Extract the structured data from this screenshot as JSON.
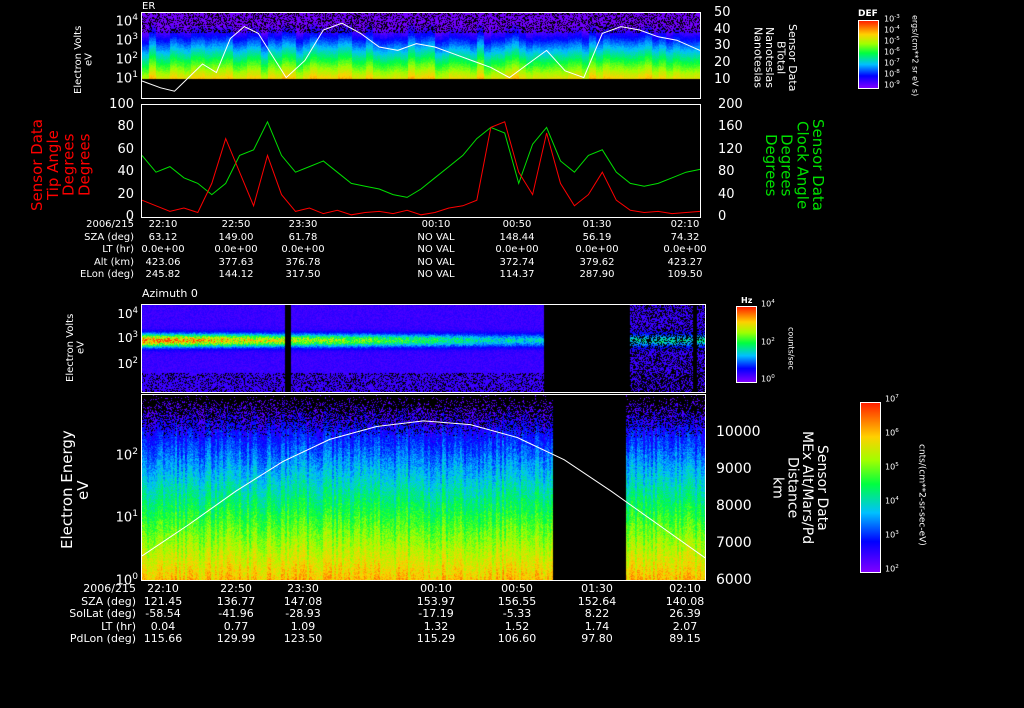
{
  "panel1": {
    "title": "ER",
    "ylabel": [
      "Electron Volts",
      "eV"
    ],
    "yticks": [
      "10^4",
      "10^3",
      "10^2",
      "10^1"
    ],
    "right_ticks": [
      "50",
      "40",
      "30",
      "20",
      "10"
    ],
    "right_label": [
      "Sensor Data",
      "BTotal",
      "Nanoteslas",
      "Nanoteslas"
    ],
    "colorbar": {
      "title": "DEF",
      "ticks": [
        "10^-3",
        "10^-4",
        "10^-5",
        "10^-6",
        "10^-7",
        "10^-8",
        "10^-9"
      ],
      "unit": "ergs/(cm**2 sr eV s)"
    }
  },
  "panel2": {
    "left_label": [
      "Sensor Data",
      "Tip Angle",
      "Degrees",
      "Degrees"
    ],
    "left_ticks": [
      "100",
      "80",
      "60",
      "40",
      "20",
      "0"
    ],
    "right_label": [
      "Sensor Data",
      "Clock Angle",
      "Degrees",
      "Degrees"
    ],
    "right_ticks": [
      "200",
      "160",
      "120",
      "80",
      "40",
      "0"
    ],
    "colors": {
      "tip": "#ff0000",
      "clock": "#00e000"
    }
  },
  "table1": {
    "date": "2006/215",
    "times": [
      "22:10",
      "22:50",
      "23:30",
      "00:10",
      "00:50",
      "01:30",
      "02:10"
    ],
    "rows": [
      {
        "label": "SZA (deg)",
        "values": [
          "63.12",
          "149.00",
          "61.78",
          "NO VAL",
          "148.44",
          "56.19",
          "74.32"
        ]
      },
      {
        "label": "LT (hr)",
        "values": [
          "0.0e+00",
          "0.0e+00",
          "0.0e+00",
          "NO VAL",
          "0.0e+00",
          "0.0e+00",
          "0.0e+00"
        ]
      },
      {
        "label": "Alt (km)",
        "values": [
          "423.06",
          "377.63",
          "376.78",
          "NO VAL",
          "372.74",
          "379.62",
          "423.27"
        ]
      },
      {
        "label": "ELon (deg)",
        "values": [
          "245.82",
          "144.12",
          "317.50",
          "NO VAL",
          "114.37",
          "287.90",
          "109.50"
        ]
      }
    ]
  },
  "panel3": {
    "title": "Azimuth 0",
    "ylabel": [
      "Electron Volts",
      "eV"
    ],
    "yticks": [
      "10^4",
      "10^3",
      "10^2"
    ],
    "colorbar": {
      "title": "Hz",
      "ticks": [
        "10^4",
        "10^2",
        "10^0"
      ],
      "unit": "counts/sec"
    }
  },
  "panel4": {
    "ylabel": [
      "Electron Energy",
      "eV"
    ],
    "yticks": [
      "10^2",
      "10^1",
      "10^0"
    ],
    "right_ticks": [
      "10000",
      "9000",
      "8000",
      "7000",
      "6000"
    ],
    "right_label": [
      "Sensor Data",
      "MEx Alt/Mars/Pd",
      "Distance",
      "km"
    ],
    "colorbar": {
      "ticks": [
        "10^7",
        "10^6",
        "10^5",
        "10^4",
        "10^3",
        "10^2"
      ],
      "unit": "cnts/(cm**2-sr-sec-eV)"
    }
  },
  "table2": {
    "date": "2006/215",
    "times": [
      "22:10",
      "22:50",
      "23:30",
      "00:10",
      "00:50",
      "01:30",
      "02:10"
    ],
    "rows": [
      {
        "label": "SZA (deg)",
        "values": [
          "121.45",
          "136.77",
          "147.08",
          "153.97",
          "156.55",
          "152.64",
          "140.08"
        ]
      },
      {
        "label": "SolLat (deg)",
        "values": [
          "-58.54",
          "-41.96",
          "-28.93",
          "-17.19",
          "-5.33",
          "8.22",
          "26.39"
        ]
      },
      {
        "label": "LT (hr)",
        "values": [
          "0.04",
          "0.77",
          "1.09",
          "1.32",
          "1.52",
          "1.74",
          "2.07"
        ]
      },
      {
        "label": "PdLon (deg)",
        "values": [
          "115.66",
          "129.99",
          "123.50",
          "115.29",
          "106.60",
          "97.80",
          "89.15"
        ]
      }
    ]
  },
  "chart_data": [
    {
      "type": "heatmap",
      "title": "ER",
      "ylabel": "Electron Volts (eV)",
      "ylim_log10": [
        0,
        4.4
      ],
      "x_minutes_from_2210": [
        0,
        240
      ],
      "overlay": {
        "name": "BTotal (nT)",
        "ylim": [
          0,
          50
        ],
        "x": [
          0,
          8,
          14,
          20,
          26,
          32,
          38,
          44,
          50,
          56,
          62,
          70,
          78,
          86,
          94,
          102,
          110,
          118,
          126,
          134,
          142,
          150,
          158,
          166,
          174,
          182,
          190,
          198,
          206,
          214,
          222,
          230,
          240
        ],
        "y": [
          10,
          6,
          4,
          12,
          20,
          15,
          35,
          42,
          38,
          25,
          12,
          22,
          40,
          44,
          38,
          30,
          28,
          32,
          30,
          26,
          22,
          18,
          12,
          20,
          28,
          16,
          12,
          38,
          42,
          40,
          36,
          34,
          28
        ]
      }
    },
    {
      "type": "line",
      "xlim_minutes_from_2210": [
        0,
        240
      ],
      "series": [
        {
          "name": "Tip Angle (deg)",
          "ylim": [
            0,
            100
          ],
          "x": [
            0,
            6,
            12,
            18,
            24,
            30,
            36,
            42,
            48,
            54,
            60,
            66,
            72,
            78,
            84,
            90,
            96,
            102,
            108,
            114,
            120,
            126,
            132,
            138,
            144,
            150,
            156,
            162,
            168,
            174,
            180,
            186,
            192,
            198,
            204,
            210,
            216,
            222,
            228,
            234,
            240
          ],
          "y": [
            15,
            10,
            5,
            8,
            4,
            30,
            70,
            40,
            10,
            55,
            20,
            5,
            8,
            3,
            6,
            2,
            4,
            5,
            3,
            6,
            2,
            4,
            8,
            10,
            15,
            80,
            85,
            40,
            20,
            75,
            30,
            10,
            20,
            40,
            15,
            6,
            4,
            5,
            3,
            4,
            5
          ]
        },
        {
          "name": "Clock Angle (deg)",
          "ylim": [
            0,
            200
          ],
          "x": [
            0,
            6,
            12,
            18,
            24,
            30,
            36,
            42,
            48,
            54,
            60,
            66,
            72,
            78,
            84,
            90,
            96,
            102,
            108,
            114,
            120,
            126,
            132,
            138,
            144,
            150,
            156,
            162,
            168,
            174,
            180,
            186,
            192,
            198,
            204,
            210,
            216,
            222,
            228,
            234,
            240
          ],
          "y": [
            110,
            80,
            90,
            70,
            60,
            40,
            60,
            110,
            120,
            170,
            110,
            80,
            90,
            100,
            80,
            60,
            55,
            50,
            40,
            35,
            50,
            70,
            90,
            110,
            140,
            160,
            150,
            60,
            130,
            160,
            100,
            80,
            110,
            120,
            80,
            60,
            55,
            60,
            70,
            80,
            85
          ]
        }
      ]
    },
    {
      "type": "heatmap",
      "title": "Azimuth 0",
      "ylabel": "Electron Volts (eV)",
      "ylim_log10": [
        0.9,
        4.5
      ],
      "x_minutes_from_2210": [
        0,
        240
      ],
      "data_gaps_minutes": [
        [
          168,
          207
        ]
      ]
    },
    {
      "type": "heatmap",
      "ylabel": "Electron Energy (eV)",
      "ylim_log10": [
        0,
        3
      ],
      "x_minutes_from_2210": [
        0,
        240
      ],
      "data_gaps_minutes": [
        [
          175,
          206
        ]
      ],
      "overlay": {
        "name": "MEx Alt/Mars/Pd Distance (km)",
        "ylim": [
          6000,
          11000
        ],
        "x": [
          0,
          20,
          40,
          60,
          80,
          100,
          120,
          140,
          160,
          180,
          200,
          220,
          240
        ],
        "y": [
          6650,
          7500,
          8400,
          9200,
          9800,
          10150,
          10300,
          10200,
          9850,
          9250,
          8400,
          7500,
          6600
        ]
      }
    }
  ]
}
